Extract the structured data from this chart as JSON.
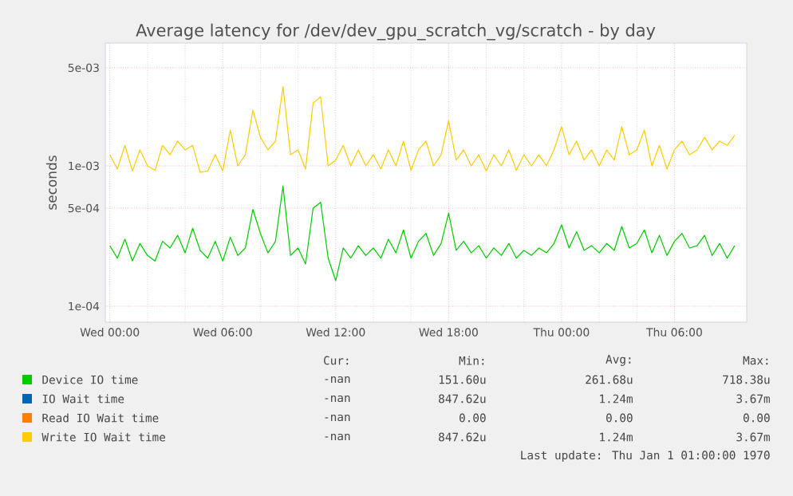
{
  "chart_data": {
    "type": "line",
    "title": "Average latency for /dev/dev_gpu_scratch_vg/scratch - by day",
    "ylabel": "seconds",
    "log": "y",
    "grid": true,
    "legend": "bottom",
    "categories": [
      "Wed 00:00",
      null,
      null,
      null,
      null,
      null,
      null,
      null,
      null,
      null,
      null,
      null,
      null,
      null,
      null,
      "Wed 06:00",
      null,
      null,
      null,
      null,
      null,
      null,
      null,
      null,
      null,
      null,
      null,
      null,
      null,
      null,
      "Wed 12:00",
      null,
      null,
      null,
      null,
      null,
      null,
      null,
      null,
      null,
      null,
      null,
      null,
      null,
      null,
      "Wed 18:00",
      null,
      null,
      null,
      null,
      null,
      null,
      null,
      null,
      null,
      null,
      null,
      null,
      null,
      null,
      "Thu 00:00",
      null,
      null,
      null,
      null,
      null,
      null,
      null,
      null,
      null,
      null,
      null,
      null,
      null,
      null,
      "Thu 06:00",
      null,
      null,
      null,
      null,
      null,
      null,
      null,
      null
    ],
    "ylim": [
      7.7e-05,
      0.0075
    ],
    "yticks": [
      {
        "value": 0.0001,
        "label": "1e-04"
      },
      {
        "value": 0.0005,
        "label": "5e-04"
      },
      {
        "value": 0.001,
        "label": "1e-03"
      },
      {
        "value": 0.005,
        "label": "5e-03"
      }
    ],
    "series": [
      {
        "name": "Device IO time",
        "color": "#00cc00",
        "values": [
          0.00027,
          0.00022,
          0.0003,
          0.00021,
          0.00028,
          0.00023,
          0.00021,
          0.00029,
          0.00026,
          0.00032,
          0.00024,
          0.00036,
          0.00025,
          0.00022,
          0.00029,
          0.00021,
          0.00031,
          0.00023,
          0.00026,
          0.00049,
          0.00033,
          0.00024,
          0.00029,
          0.000718,
          0.00023,
          0.00026,
          0.0002,
          0.0005,
          0.00055,
          0.00022,
          0.000152,
          0.00026,
          0.00022,
          0.00027,
          0.00023,
          0.00026,
          0.00022,
          0.0003,
          0.00024,
          0.00035,
          0.00022,
          0.00029,
          0.00033,
          0.00023,
          0.00028,
          0.00046,
          0.00025,
          0.00029,
          0.00024,
          0.00027,
          0.00022,
          0.00026,
          0.00023,
          0.00028,
          0.00022,
          0.00025,
          0.00023,
          0.00026,
          0.00024,
          0.00028,
          0.00038,
          0.00026,
          0.00034,
          0.00025,
          0.00027,
          0.00024,
          0.00028,
          0.00025,
          0.00037,
          0.00026,
          0.00028,
          0.00035,
          0.00024,
          0.00032,
          0.00023,
          0.00029,
          0.00033,
          0.00026,
          0.00027,
          0.00032,
          0.00023,
          0.00028,
          0.00022,
          0.00027
        ]
      },
      {
        "name": "IO Wait time",
        "color": "#0066b3",
        "values": [
          null,
          null,
          null,
          null,
          null,
          null,
          null,
          null,
          null,
          null,
          null,
          null,
          null,
          null,
          null,
          null,
          null,
          null,
          null,
          null,
          null,
          null,
          null,
          null,
          null,
          null,
          null,
          null,
          null,
          null,
          null,
          null,
          null,
          null,
          null,
          null,
          null,
          null,
          null,
          null,
          null,
          null,
          null,
          null,
          null,
          null,
          null,
          null,
          null,
          null,
          null,
          null,
          null,
          null,
          null,
          null,
          null,
          null,
          null,
          null,
          null,
          null,
          null,
          null,
          null,
          null,
          null,
          null,
          null,
          null,
          null,
          null,
          null,
          null,
          null,
          null,
          null,
          null,
          null,
          null,
          null,
          null,
          null,
          null
        ]
      },
      {
        "name": "Read IO Wait time",
        "color": "#ff8000",
        "values": [
          null,
          null,
          null,
          null,
          null,
          null,
          null,
          null,
          null,
          null,
          null,
          null,
          null,
          null,
          null,
          null,
          null,
          null,
          null,
          null,
          null,
          null,
          null,
          null,
          null,
          null,
          null,
          null,
          null,
          null,
          null,
          null,
          null,
          null,
          null,
          null,
          null,
          null,
          null,
          null,
          null,
          null,
          null,
          null,
          null,
          null,
          null,
          null,
          null,
          null,
          null,
          null,
          null,
          null,
          null,
          null,
          null,
          null,
          null,
          null,
          null,
          null,
          null,
          null,
          null,
          null,
          null,
          null,
          null,
          null,
          null,
          null,
          null,
          null,
          null,
          null,
          null,
          null,
          null,
          null,
          null,
          null,
          null,
          null
        ]
      },
      {
        "name": "Write IO Wait time",
        "color": "#ffcc00",
        "values": [
          0.0012,
          0.00095,
          0.0014,
          0.00092,
          0.0013,
          0.001,
          0.00093,
          0.0014,
          0.0012,
          0.0015,
          0.0013,
          0.0014,
          0.0009,
          0.00092,
          0.0012,
          0.00092,
          0.0018,
          0.001,
          0.0012,
          0.0025,
          0.0016,
          0.0013,
          0.0015,
          0.00367,
          0.0012,
          0.0013,
          0.00095,
          0.0028,
          0.0031,
          0.001,
          0.0011,
          0.0014,
          0.001,
          0.0013,
          0.001,
          0.0012,
          0.00095,
          0.0013,
          0.001,
          0.0015,
          0.00093,
          0.0013,
          0.0015,
          0.001,
          0.0012,
          0.0021,
          0.0011,
          0.0013,
          0.001,
          0.0012,
          0.00092,
          0.0012,
          0.001,
          0.0013,
          0.00093,
          0.0012,
          0.001,
          0.0012,
          0.001,
          0.0013,
          0.0019,
          0.0012,
          0.0015,
          0.0011,
          0.0013,
          0.001,
          0.0013,
          0.0011,
          0.0019,
          0.0012,
          0.0013,
          0.0018,
          0.001,
          0.0014,
          0.00095,
          0.0013,
          0.0015,
          0.0012,
          0.0013,
          0.0016,
          0.0013,
          0.0015,
          0.0014,
          0.00165
        ]
      }
    ],
    "annotations": [
      "Cur:",
      "Min:",
      "Avg:",
      "Max:",
      "-nan",
      "151.60u",
      "261.68u",
      "718.38u",
      "-nan",
      "847.62u",
      "1.24m",
      "3.67m",
      "-nan",
      "0.00",
      "0.00",
      "0.00",
      "-nan",
      "847.62u",
      "1.24m",
      "3.67m",
      "Last update: Thu Jan  1 01:00:00 1970"
    ]
  }
}
